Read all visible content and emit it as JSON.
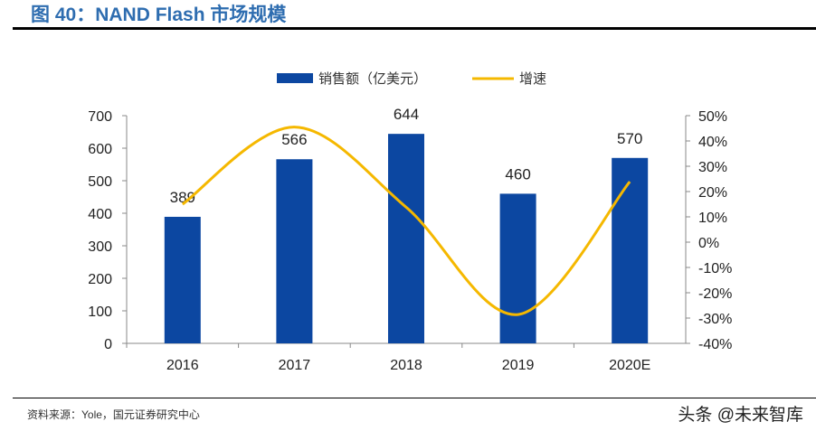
{
  "header": {
    "title": "图 40：NAND Flash 市场规模"
  },
  "footer": {
    "source": "资料来源：Yole，国元证券研究中心",
    "watermark": "头条 @未来智库"
  },
  "chart_data": {
    "type": "bar+line",
    "categories": [
      "2016",
      "2017",
      "2018",
      "2019",
      "2020E"
    ],
    "series": [
      {
        "name": "销售额（亿美元）",
        "type": "bar",
        "axis": "left",
        "color": "#0c47a1",
        "values": [
          389,
          566,
          644,
          460,
          570
        ],
        "data_labels": [
          "389",
          "566",
          "644",
          "460",
          "570"
        ]
      },
      {
        "name": "增速",
        "type": "line",
        "axis": "right",
        "color": "#f5b800",
        "values": [
          15,
          45.5,
          13.8,
          -28.6,
          23.9
        ],
        "smooth": true
      }
    ],
    "y_left": {
      "range": [
        0,
        700
      ],
      "ticks": [
        "0",
        "100",
        "200",
        "300",
        "400",
        "500",
        "600",
        "700"
      ]
    },
    "y_right": {
      "range": [
        -40,
        50
      ],
      "unit": "%",
      "ticks": [
        "-40%",
        "-30%",
        "-20%",
        "-10%",
        "0%",
        "10%",
        "20%",
        "30%",
        "40%",
        "50%"
      ]
    },
    "legend": "top",
    "grid": false
  }
}
